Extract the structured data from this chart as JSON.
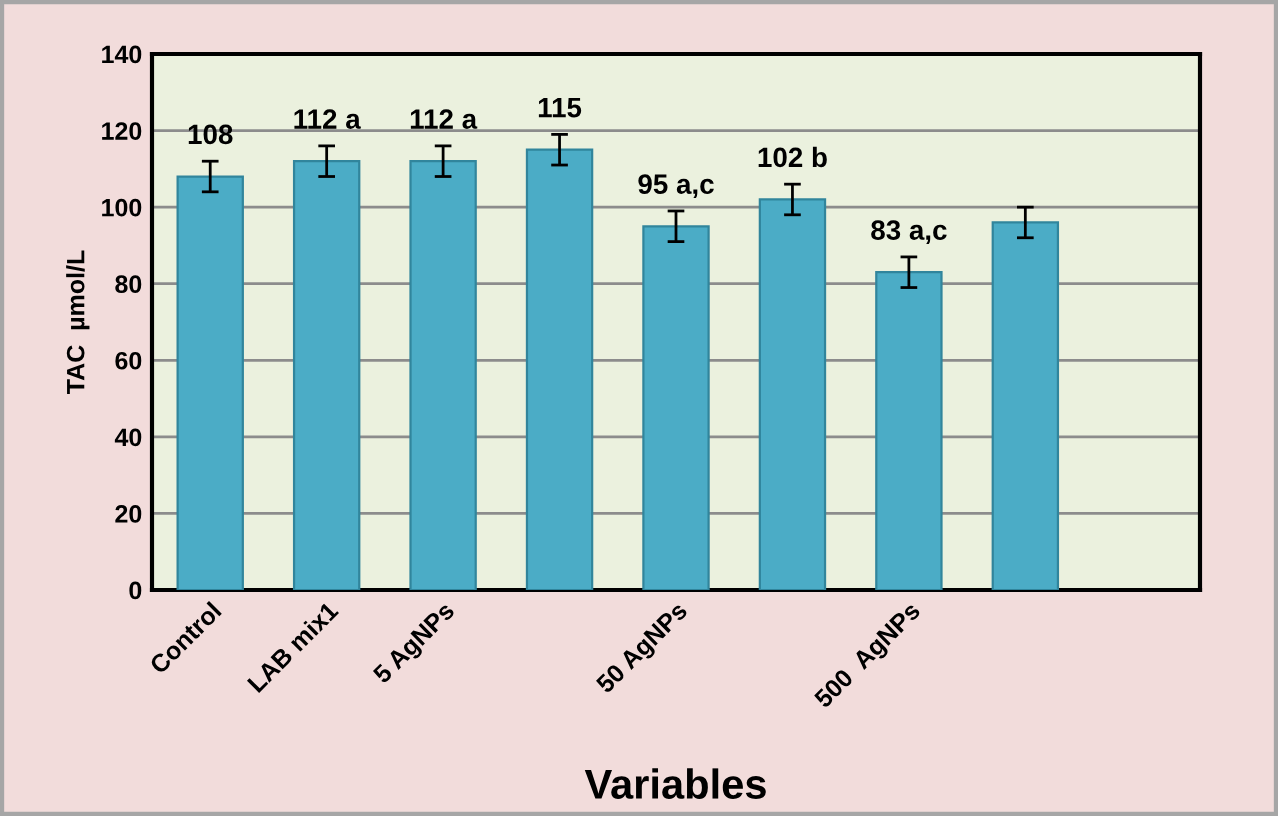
{
  "chart_data": {
    "type": "bar",
    "xlabel": "Variables",
    "ylabel": "TAC  µmol/L",
    "categories": [
      "Control",
      "LAB mix1",
      "5 AgNPs",
      null,
      "50 AgNPs",
      null,
      "500  AgNPs",
      null,
      null
    ],
    "values": [
      108,
      112,
      112,
      115,
      95,
      102,
      83,
      96,
      null
    ],
    "errors": [
      4,
      4,
      4,
      4,
      4,
      4,
      4,
      4,
      null
    ],
    "value_labels": [
      "108",
      "112 a",
      "112 a",
      "115",
      "95 a,c",
      "102 b",
      "83 a,c",
      null,
      null
    ],
    "color": "#4bacc6",
    "ylim": [
      0,
      140
    ],
    "yticks": [
      0,
      20,
      40,
      60,
      80,
      100,
      120,
      140
    ],
    "grid": "y",
    "legend": false
  }
}
